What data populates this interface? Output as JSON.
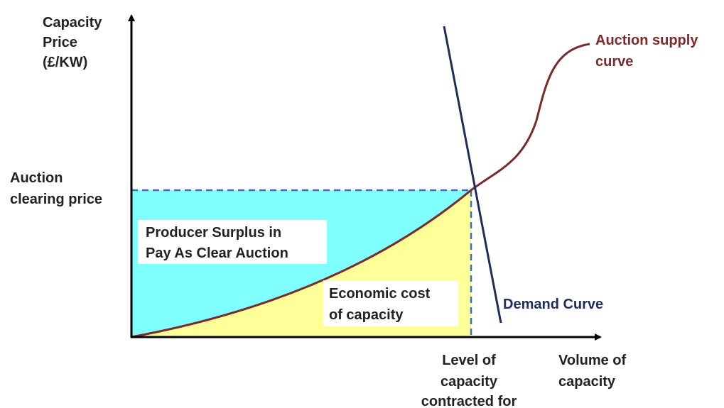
{
  "y_axis_label": {
    "lines": [
      "Capacity",
      "Price",
      "(£/KW)"
    ]
  },
  "clearing_price_label": {
    "lines": [
      "Auction",
      "clearing price"
    ]
  },
  "producer_surplus_label": {
    "lines": [
      "Producer Surplus in",
      "Pay As Clear Auction"
    ]
  },
  "economic_cost_label": {
    "lines": [
      "Economic cost",
      "of capacity"
    ]
  },
  "supply_curve_label": {
    "lines": [
      "Auction supply",
      "curve"
    ]
  },
  "demand_curve_label": {
    "lines": [
      "Demand Curve"
    ]
  },
  "level_label": {
    "lines": [
      "Level of",
      "capacity",
      "contracted for"
    ]
  },
  "x_axis_label": {
    "lines": [
      "Volume of",
      "capacity"
    ]
  }
}
